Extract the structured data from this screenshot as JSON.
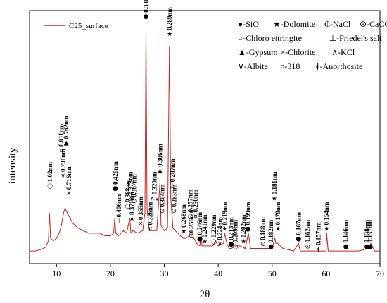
{
  "chart_data": {
    "type": "line",
    "xlabel": "2θ",
    "ylabel": "intensity",
    "xlim": [
      5,
      70
    ],
    "xticks": [
      10,
      20,
      30,
      40,
      50,
      60,
      70
    ],
    "series": [
      {
        "name": "C25_surface",
        "color": "#c8201e",
        "points": [
          [
            5,
            0.05
          ],
          [
            6,
            0.05
          ],
          [
            7,
            0.055
          ],
          [
            8,
            0.065
          ],
          [
            8.5,
            0.09
          ],
          [
            8.7,
            0.2
          ],
          [
            8.9,
            0.1
          ],
          [
            9.4,
            0.09
          ],
          [
            10,
            0.1
          ],
          [
            10.5,
            0.12
          ],
          [
            10.9,
            0.15
          ],
          [
            11.3,
            0.2
          ],
          [
            11.6,
            0.22
          ],
          [
            12,
            0.2
          ],
          [
            12.5,
            0.18
          ],
          [
            13,
            0.16
          ],
          [
            14,
            0.14
          ],
          [
            15,
            0.13
          ],
          [
            16,
            0.12
          ],
          [
            17,
            0.12
          ],
          [
            18,
            0.12
          ],
          [
            19,
            0.11
          ],
          [
            20,
            0.11
          ],
          [
            20.6,
            0.12
          ],
          [
            20.8,
            0.18
          ],
          [
            21,
            0.12
          ],
          [
            21.5,
            0.11
          ],
          [
            22,
            0.12
          ],
          [
            22.4,
            0.13
          ],
          [
            23,
            0.12
          ],
          [
            23.6,
            0.18
          ],
          [
            23.8,
            0.12
          ],
          [
            24.2,
            0.13
          ],
          [
            25,
            0.12
          ],
          [
            26,
            0.13
          ],
          [
            26.4,
            0.2
          ],
          [
            26.6,
            0.93
          ],
          [
            26.8,
            0.22
          ],
          [
            27.2,
            0.13
          ],
          [
            28,
            0.13
          ],
          [
            28.6,
            0.13
          ],
          [
            29.2,
            0.32
          ],
          [
            29.4,
            0.15
          ],
          [
            30,
            0.13
          ],
          [
            30.6,
            0.14
          ],
          [
            30.95,
            0.86
          ],
          [
            31.2,
            0.26
          ],
          [
            31.6,
            0.14
          ],
          [
            32,
            0.13
          ],
          [
            33,
            0.11
          ],
          [
            33.5,
            0.1
          ],
          [
            34,
            0.1
          ],
          [
            34.6,
            0.11
          ],
          [
            35,
            0.13
          ],
          [
            35.5,
            0.1
          ],
          [
            36,
            0.08
          ],
          [
            36.6,
            0.07
          ],
          [
            36.8,
            0.12
          ],
          [
            37,
            0.07
          ],
          [
            38,
            0.07
          ],
          [
            39,
            0.07
          ],
          [
            39.5,
            0.09
          ],
          [
            40,
            0.07
          ],
          [
            41,
            0.08
          ],
          [
            41.2,
            0.12
          ],
          [
            41.6,
            0.08
          ],
          [
            42,
            0.06
          ],
          [
            42.5,
            0.06
          ],
          [
            43,
            0.07
          ],
          [
            44,
            0.07
          ],
          [
            45,
            0.06
          ],
          [
            45.6,
            0.12
          ],
          [
            46,
            0.06
          ],
          [
            47,
            0.06
          ],
          [
            48,
            0.06
          ],
          [
            49,
            0.06
          ],
          [
            50,
            0.06
          ],
          [
            50.5,
            0.1
          ],
          [
            50.7,
            0.08
          ],
          [
            51,
            0.08
          ],
          [
            52,
            0.06
          ],
          [
            54,
            0.05
          ],
          [
            54.9,
            0.08
          ],
          [
            55.2,
            0.05
          ],
          [
            57,
            0.05
          ],
          [
            58,
            0.05
          ],
          [
            60,
            0.05
          ],
          [
            60.1,
            0.12
          ],
          [
            60.4,
            0.05
          ],
          [
            62,
            0.05
          ],
          [
            64,
            0.05
          ],
          [
            66,
            0.05
          ],
          [
            68,
            0.06
          ],
          [
            68.3,
            0.08
          ],
          [
            69,
            0.05
          ],
          [
            70,
            0.05
          ]
        ]
      }
    ],
    "legend": {
      "position": "top-left",
      "label": "C25_surface"
    },
    "key": [
      [
        "●-SiO",
        "★-Dolomite",
        "₵-NaCl",
        "⊙-CaCO"
      ],
      [
        "○-Chloro ettringite",
        "⊥-Friedel's salt"
      ],
      [
        "▲-Gypsum",
        "×-Chlorite",
        "∧-KCl"
      ],
      [
        "∨-Albite",
        "¤-318",
        "∮-Anorthosite"
      ]
    ],
    "annotations": [
      {
        "x": 8.8,
        "yfrac": 0.3,
        "label": "1.02nm",
        "sym": "○"
      },
      {
        "x": 10.9,
        "yfrac": 0.44,
        "label": "0.811nm",
        "sym": "¤"
      },
      {
        "x": 11.2,
        "yfrac": 0.34,
        "label": "0.791nm",
        "sym": "∨"
      },
      {
        "x": 11.8,
        "yfrac": 0.47,
        "label": "0.762nm",
        "sym": "▲"
      },
      {
        "x": 12.3,
        "yfrac": 0.27,
        "label": "0.716nm",
        "sym": "×"
      },
      {
        "x": 20.9,
        "yfrac": 0.29,
        "label": "0.428nm",
        "sym": "●"
      },
      {
        "x": 21.6,
        "yfrac": 0.16,
        "label": "0.406nm",
        "sym": "⊥"
      },
      {
        "x": 23.2,
        "yfrac": 0.22,
        "label": "0.388nm",
        "sym": "○"
      },
      {
        "x": 23.7,
        "yfrac": 0.25,
        "label": "0.378nm",
        "sym": "⊥"
      },
      {
        "x": 24.0,
        "yfrac": 0.17,
        "label": "0.371nm",
        "sym": "★"
      },
      {
        "x": 24.4,
        "yfrac": 0.24,
        "label": "0.367nm",
        "sym": "⊙"
      },
      {
        "x": 25.6,
        "yfrac": 0.15,
        "label": "0.355nm",
        "sym": "×"
      },
      {
        "x": 26.6,
        "yfrac": 0.97,
        "label": "0.336nm",
        "sym": "●"
      },
      {
        "x": 27.4,
        "yfrac": 0.13,
        "label": "0.326nm",
        "sym": "∨"
      },
      {
        "x": 28.2,
        "yfrac": 0.25,
        "label": "0.320nm",
        "sym": "∧∨"
      },
      {
        "x": 29.2,
        "yfrac": 0.36,
        "label": "0.306nm",
        "sym": "▲"
      },
      {
        "x": 29.6,
        "yfrac": 0.2,
        "label": "0.304nm",
        "sym": "⊙"
      },
      {
        "x": 31.0,
        "yfrac": 0.9,
        "label": "0.289nm",
        "sym": "★"
      },
      {
        "x": 31.5,
        "yfrac": 0.3,
        "label": "0.287nm",
        "sym": "⊥"
      },
      {
        "x": 31.8,
        "yfrac": 0.2,
        "label": "0.283nm",
        "sym": "⊙"
      },
      {
        "x": 33.6,
        "yfrac": 0.12,
        "label": "0.268nm",
        "sym": "★"
      },
      {
        "x": 34.8,
        "yfrac": 0.18,
        "label": "0.257nm",
        "sym": "○"
      },
      {
        "x": 35.0,
        "yfrac": 0.1,
        "label": "0.256nm",
        "sym": "⊙"
      },
      {
        "x": 35.8,
        "yfrac": 0.18,
        "label": "0.250nm",
        "sym": "¤"
      },
      {
        "x": 36.6,
        "yfrac": 0.09,
        "label": "0.246nm",
        "sym": "●"
      },
      {
        "x": 37.5,
        "yfrac": 0.08,
        "label": "0.241nm",
        "sym": "★"
      },
      {
        "x": 39.2,
        "yfrac": 0.08,
        "label": "0.229nm",
        "sym": "○"
      },
      {
        "x": 40.3,
        "yfrac": 0.07,
        "label": "0.224nm",
        "sym": "∨"
      },
      {
        "x": 41.2,
        "yfrac": 0.13,
        "label": "0.219nm",
        "sym": "★"
      },
      {
        "x": 42.4,
        "yfrac": 0.07,
        "label": "0.213nm",
        "sym": "●"
      },
      {
        "x": 43.2,
        "yfrac": 0.06,
        "label": "0.209nm",
        "sym": "○"
      },
      {
        "x": 44.7,
        "yfrac": 0.08,
        "label": "0.202nm",
        "sym": "★"
      },
      {
        "x": 45.5,
        "yfrac": 0.13,
        "label": "0.199nm",
        "sym": "●"
      },
      {
        "x": 48.3,
        "yfrac": 0.07,
        "label": "0.188nm",
        "sym": "⊙"
      },
      {
        "x": 49.8,
        "yfrac": 0.06,
        "label": "0.182nm",
        "sym": "●"
      },
      {
        "x": 50.4,
        "yfrac": 0.25,
        "label": "0.181nm",
        "sym": "★"
      },
      {
        "x": 51.1,
        "yfrac": 0.13,
        "label": "0.179nm",
        "sym": "★"
      },
      {
        "x": 54.9,
        "yfrac": 0.09,
        "label": "0.167nm",
        "sym": "●"
      },
      {
        "x": 56.6,
        "yfrac": 0.06,
        "label": "0.162nm",
        "sym": "⊙"
      },
      {
        "x": 58.6,
        "yfrac": 0.05,
        "label": "0.157nm",
        "sym": "∮"
      },
      {
        "x": 60.1,
        "yfrac": 0.13,
        "label": "0.154nm",
        "sym": "★"
      },
      {
        "x": 63.7,
        "yfrac": 0.06,
        "label": "0.146nm",
        "sym": "●"
      },
      {
        "x": 67.6,
        "yfrac": 0.06,
        "label": "0.138nm",
        "sym": "●"
      },
      {
        "x": 68.2,
        "yfrac": 0.06,
        "label": "0.137nm",
        "sym": "●"
      }
    ]
  }
}
